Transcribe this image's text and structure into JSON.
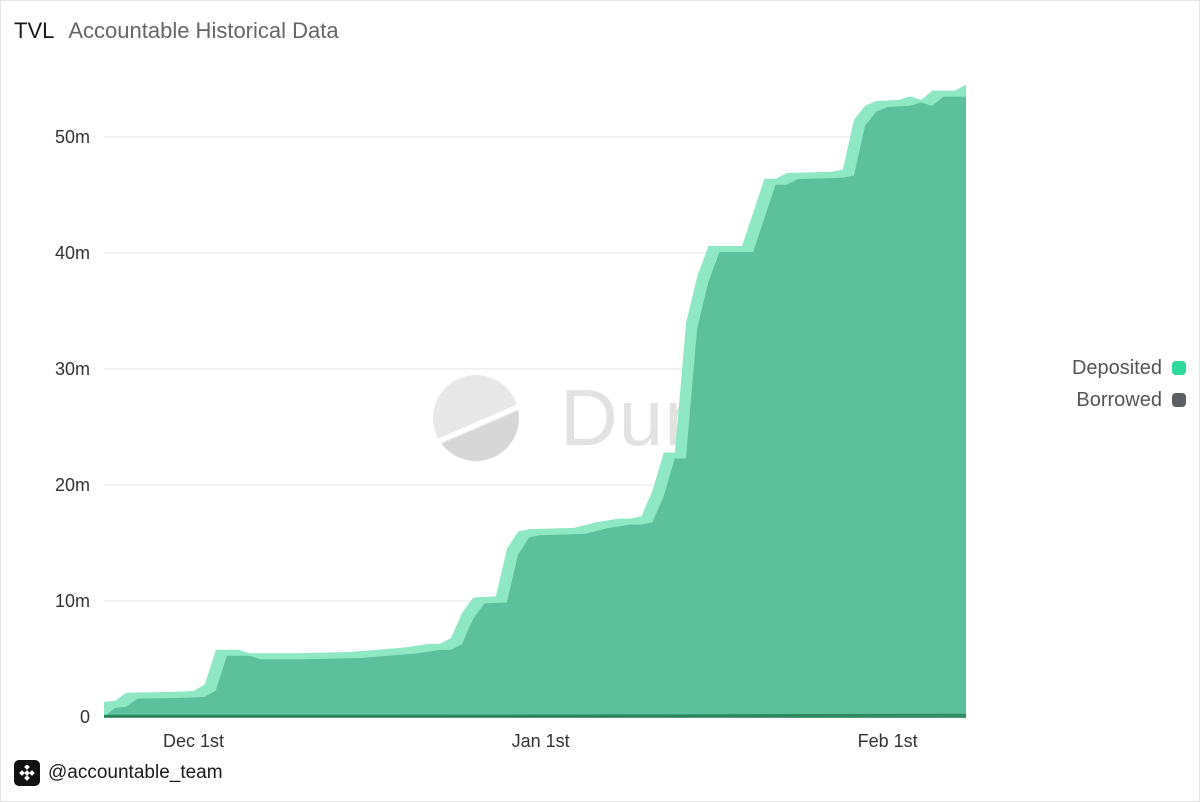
{
  "header": {
    "title": "TVL",
    "subtitle": "Accountable Historical Data"
  },
  "legend": {
    "items": [
      {
        "label": "Deposited",
        "color": "#2ed79a"
      },
      {
        "label": "Borrowed",
        "color": "#5c5f66"
      }
    ]
  },
  "watermark": {
    "text": "Dune"
  },
  "footer": {
    "handle": "@accountable_team"
  },
  "colors": {
    "deposited_fill": "#5cc09d",
    "deposited_edge": "#8ee8c3",
    "borrowed_line": "#2a8a5e",
    "grid": "#e6e6e6",
    "axis_text": "#333333"
  },
  "chart_data": {
    "type": "area",
    "x_axis": {
      "type": "date",
      "range": [
        "2024-11-23",
        "2025-02-08"
      ],
      "ticks": [
        "Dec 1st",
        "Jan 1st",
        "Feb 1st"
      ],
      "tick_dates": [
        "2024-12-01",
        "2025-01-01",
        "2025-02-01"
      ]
    },
    "y_axis": {
      "range": [
        0,
        55000000
      ],
      "ticks": [
        0,
        10000000,
        20000000,
        30000000,
        40000000,
        50000000
      ],
      "tick_labels": [
        "0",
        "10m",
        "20m",
        "30m",
        "40m",
        "50m"
      ]
    },
    "grid": true,
    "legend_position": "right",
    "series": [
      {
        "name": "Deposited",
        "points": [
          [
            "2024-11-23",
            1300000
          ],
          [
            "2024-11-24",
            1400000
          ],
          [
            "2024-11-25",
            2100000
          ],
          [
            "2024-11-28",
            2150000
          ],
          [
            "2024-11-30",
            2200000
          ],
          [
            "2024-12-01",
            2250000
          ],
          [
            "2024-12-02",
            2800000
          ],
          [
            "2024-12-03",
            5800000
          ],
          [
            "2024-12-05",
            5800000
          ],
          [
            "2024-12-06",
            5500000
          ],
          [
            "2024-12-10",
            5500000
          ],
          [
            "2024-12-15",
            5600000
          ],
          [
            "2024-12-20",
            6000000
          ],
          [
            "2024-12-22",
            6300000
          ],
          [
            "2024-12-23",
            6300000
          ],
          [
            "2024-12-24",
            6800000
          ],
          [
            "2024-12-25",
            9000000
          ],
          [
            "2024-12-26",
            10300000
          ],
          [
            "2024-12-28",
            10400000
          ],
          [
            "2024-12-29",
            14500000
          ],
          [
            "2024-12-30",
            16000000
          ],
          [
            "2024-12-31",
            16200000
          ],
          [
            "2025-01-04",
            16300000
          ],
          [
            "2025-01-06",
            16800000
          ],
          [
            "2025-01-08",
            17100000
          ],
          [
            "2025-01-09",
            17100000
          ],
          [
            "2025-01-10",
            17300000
          ],
          [
            "2025-01-11",
            19500000
          ],
          [
            "2025-01-12",
            22800000
          ],
          [
            "2025-01-13",
            22800000
          ],
          [
            "2025-01-14",
            34000000
          ],
          [
            "2025-01-15",
            38000000
          ],
          [
            "2025-01-16",
            40600000
          ],
          [
            "2025-01-19",
            40600000
          ],
          [
            "2025-01-20",
            43500000
          ],
          [
            "2025-01-21",
            46400000
          ],
          [
            "2025-01-22",
            46400000
          ],
          [
            "2025-01-23",
            46900000
          ],
          [
            "2025-01-27",
            47000000
          ],
          [
            "2025-01-28",
            47200000
          ],
          [
            "2025-01-29",
            51500000
          ],
          [
            "2025-01-30",
            52700000
          ],
          [
            "2025-01-31",
            53100000
          ],
          [
            "2025-02-02",
            53200000
          ],
          [
            "2025-02-03",
            53500000
          ],
          [
            "2025-02-04",
            53200000
          ],
          [
            "2025-02-05",
            54000000
          ],
          [
            "2025-02-07",
            54000000
          ],
          [
            "2025-02-08",
            54500000
          ]
        ]
      },
      {
        "name": "Borrowed",
        "points": [
          [
            "2024-11-23",
            100000
          ],
          [
            "2024-12-15",
            100000
          ],
          [
            "2025-01-15",
            150000
          ],
          [
            "2025-02-08",
            200000
          ]
        ]
      }
    ]
  }
}
